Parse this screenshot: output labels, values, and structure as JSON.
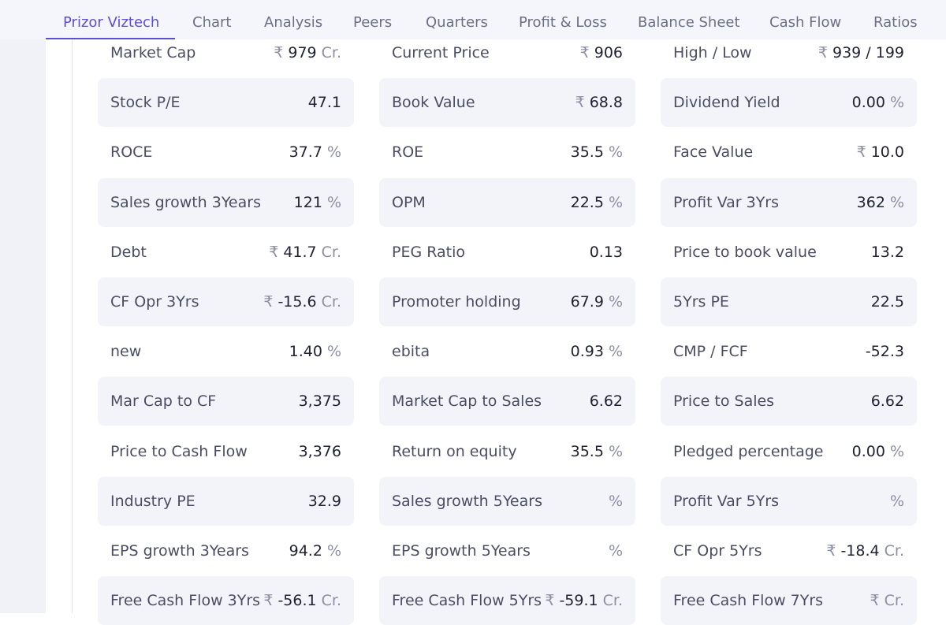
{
  "nav": {
    "tabs": [
      {
        "label": "Prizor Viztech",
        "active": true
      },
      {
        "label": "Chart"
      },
      {
        "label": "Analysis"
      },
      {
        "label": "Peers"
      },
      {
        "label": "Quarters"
      },
      {
        "label": "Profit & Loss"
      },
      {
        "label": "Balance Sheet"
      },
      {
        "label": "Cash Flow"
      },
      {
        "label": "Ratios"
      }
    ]
  },
  "ratios": [
    [
      {
        "name": "Market Cap",
        "prefix": "₹",
        "value": "979",
        "unit": "Cr."
      },
      {
        "name": "Current Price",
        "prefix": "₹",
        "value": "906",
        "unit": ""
      },
      {
        "name": "High / Low",
        "prefix": "₹",
        "value": "939 / 199",
        "unit": ""
      }
    ],
    [
      {
        "name": "Stock P/E",
        "prefix": "",
        "value": "47.1",
        "unit": ""
      },
      {
        "name": "Book Value",
        "prefix": "₹",
        "value": "68.8",
        "unit": ""
      },
      {
        "name": "Dividend Yield",
        "prefix": "",
        "value": "0.00",
        "unit": "%"
      }
    ],
    [
      {
        "name": "ROCE",
        "prefix": "",
        "value": "37.7",
        "unit": "%"
      },
      {
        "name": "ROE",
        "prefix": "",
        "value": "35.5",
        "unit": "%"
      },
      {
        "name": "Face Value",
        "prefix": "₹",
        "value": "10.0",
        "unit": ""
      }
    ],
    [
      {
        "name": "Sales growth 3Years",
        "prefix": "",
        "value": "121",
        "unit": "%"
      },
      {
        "name": "OPM",
        "prefix": "",
        "value": "22.5",
        "unit": "%"
      },
      {
        "name": "Profit Var 3Yrs",
        "prefix": "",
        "value": "362",
        "unit": "%"
      }
    ],
    [
      {
        "name": "Debt",
        "prefix": "₹",
        "value": "41.7",
        "unit": "Cr."
      },
      {
        "name": "PEG Ratio",
        "prefix": "",
        "value": "0.13",
        "unit": ""
      },
      {
        "name": "Price to book value",
        "prefix": "",
        "value": "13.2",
        "unit": ""
      }
    ],
    [
      {
        "name": "CF Opr 3Yrs",
        "prefix": "₹",
        "value": "-15.6",
        "unit": "Cr."
      },
      {
        "name": "Promoter holding",
        "prefix": "",
        "value": "67.9",
        "unit": "%"
      },
      {
        "name": "5Yrs PE",
        "prefix": "",
        "value": "22.5",
        "unit": ""
      }
    ],
    [
      {
        "name": "new",
        "prefix": "",
        "value": "1.40",
        "unit": "%"
      },
      {
        "name": "ebita",
        "prefix": "",
        "value": "0.93",
        "unit": "%"
      },
      {
        "name": "CMP / FCF",
        "prefix": "",
        "value": "-52.3",
        "unit": ""
      }
    ],
    [
      {
        "name": "Mar Cap to CF",
        "prefix": "",
        "value": "3,375",
        "unit": ""
      },
      {
        "name": "Market Cap to Sales",
        "prefix": "",
        "value": "6.62",
        "unit": ""
      },
      {
        "name": "Price to Sales",
        "prefix": "",
        "value": "6.62",
        "unit": ""
      }
    ],
    [
      {
        "name": "Price to Cash Flow",
        "prefix": "",
        "value": "3,376",
        "unit": ""
      },
      {
        "name": "Return on equity",
        "prefix": "",
        "value": "35.5",
        "unit": "%"
      },
      {
        "name": "Pledged percentage",
        "prefix": "",
        "value": "0.00",
        "unit": "%"
      }
    ],
    [
      {
        "name": "Industry PE",
        "prefix": "",
        "value": "32.9",
        "unit": ""
      },
      {
        "name": "Sales growth 5Years",
        "prefix": "",
        "value": "",
        "unit": "%"
      },
      {
        "name": "Profit Var 5Yrs",
        "prefix": "",
        "value": "",
        "unit": "%"
      }
    ],
    [
      {
        "name": "EPS growth 3Years",
        "prefix": "",
        "value": "94.2",
        "unit": "%"
      },
      {
        "name": "EPS growth 5Years",
        "prefix": "",
        "value": "",
        "unit": "%"
      },
      {
        "name": "CF Opr 5Yrs",
        "prefix": "₹",
        "value": "-18.4",
        "unit": "Cr."
      }
    ],
    [
      {
        "name": "Free Cash Flow 3Yrs",
        "prefix": "₹",
        "value": "-56.1",
        "unit": "Cr."
      },
      {
        "name": "Free Cash Flow 5Yrs",
        "prefix": "₹",
        "value": "-59.1",
        "unit": "Cr."
      },
      {
        "name": "Free Cash Flow 7Yrs",
        "prefix": "₹",
        "value": "",
        "unit": "Cr."
      }
    ]
  ]
}
